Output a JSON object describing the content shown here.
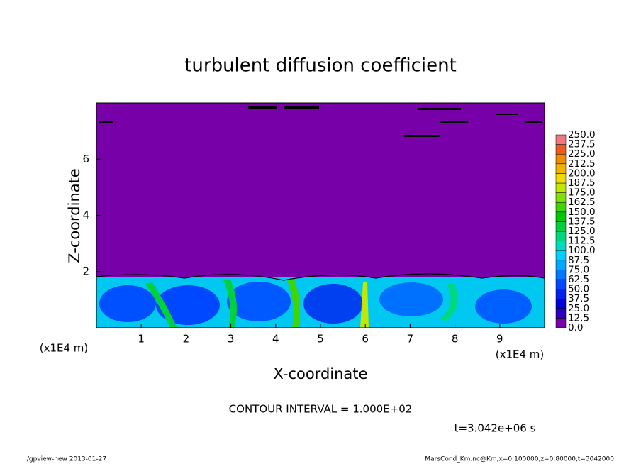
{
  "chart_data": {
    "type": "heatmap",
    "title": "turbulent diffusion coefficient",
    "x_label": "X-coordinate",
    "y_label": "Z-coordinate",
    "x_unit_left": "(x1E4 m)",
    "x_unit_right": "(x1E4 m)",
    "xlim": [
      0,
      10
    ],
    "xticks": [
      1,
      2,
      3,
      4,
      5,
      6,
      7,
      8,
      9
    ],
    "ylim": [
      0,
      8
    ],
    "yticks": [
      2,
      4,
      6
    ],
    "contour_note": "CONTOUR INTERVAL = 1.000E+02",
    "time_label": "t=3.042e+06 s",
    "footer_left": "./gpview-new  2013-01-27",
    "footer_right": "MarsCond_Km.nc@Km,x=0:100000,z=0:80000,t=3042000",
    "colorbar": {
      "levels": [
        {
          "value": 0,
          "label": "0.0"
        },
        {
          "value": 12.5,
          "label": "12.5"
        },
        {
          "value": 25,
          "label": "25.0"
        },
        {
          "value": 37.5,
          "label": "37.5"
        },
        {
          "value": 50,
          "label": "50.0"
        },
        {
          "value": 62.5,
          "label": "62.5"
        },
        {
          "value": 75,
          "label": "75.0"
        },
        {
          "value": 87.5,
          "label": "87.5"
        },
        {
          "value": 100,
          "label": "100.0"
        },
        {
          "value": 112.5,
          "label": "112.5"
        },
        {
          "value": 125,
          "label": "125.0"
        },
        {
          "value": 137.5,
          "label": "137.5"
        },
        {
          "value": 150,
          "label": "150.0"
        },
        {
          "value": 162.5,
          "label": "162.5"
        },
        {
          "value": 175,
          "label": "175.0"
        },
        {
          "value": 187.5,
          "label": "187.5"
        },
        {
          "value": 200,
          "label": "200.0"
        },
        {
          "value": 212.5,
          "label": "212.5"
        },
        {
          "value": 225,
          "label": "225.0"
        },
        {
          "value": 237.5,
          "label": "237.5"
        },
        {
          "value": 250,
          "label": "250.0"
        }
      ],
      "colors": [
        "#7800a8",
        "#2a00c0",
        "#0000d8",
        "#0020f0",
        "#0048ff",
        "#0078ff",
        "#00a8ff",
        "#00d0ff",
        "#00dcc0",
        "#00d880",
        "#00d040",
        "#00c800",
        "#40d400",
        "#80e000",
        "#c0e800",
        "#f0dc00",
        "#f0b400",
        "#f08c00",
        "#f05a1e",
        "#f07878"
      ]
    }
  }
}
